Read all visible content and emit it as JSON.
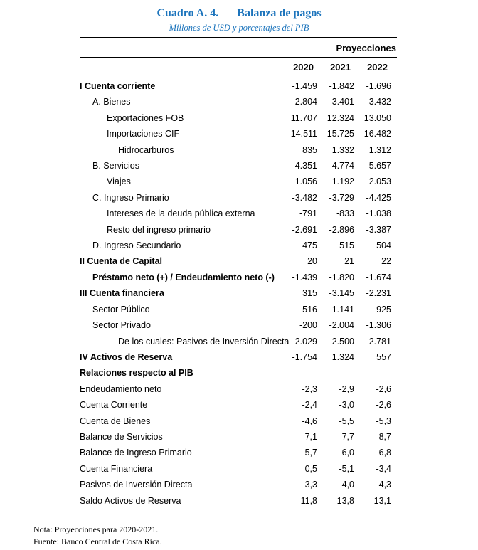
{
  "header": {
    "title_label": "Cuadro A. 4.",
    "title": "Balanza de pagos",
    "subtitle": "Millones de USD y porcentajes del PIB",
    "accent_color": "#1c74bc"
  },
  "table": {
    "projections_label": "Proyecciones",
    "years": [
      "2020",
      "2021",
      "2022"
    ],
    "rows": [
      {
        "label": "I Cuenta corriente",
        "values": [
          "-1.459",
          "-1.842",
          "-1.696"
        ]
      },
      {
        "label": "A. Bienes",
        "values": [
          "-2.804",
          "-3.401",
          "-3.432"
        ]
      },
      {
        "label": "Exportaciones FOB",
        "values": [
          "11.707",
          "12.324",
          "13.050"
        ]
      },
      {
        "label": "Importaciones CIF",
        "values": [
          "14.511",
          "15.725",
          "16.482"
        ]
      },
      {
        "label": "Hidrocarburos",
        "values": [
          "835",
          "1.332",
          "1.312"
        ]
      },
      {
        "label": "B. Servicios",
        "values": [
          "4.351",
          "4.774",
          "5.657"
        ]
      },
      {
        "label": "Viajes",
        "values": [
          "1.056",
          "1.192",
          "2.053"
        ]
      },
      {
        "label": "C. Ingreso Primario",
        "values": [
          "-3.482",
          "-3.729",
          "-4.425"
        ]
      },
      {
        "label": "Intereses de la deuda pública externa",
        "values": [
          "-791",
          "-833",
          "-1.038"
        ]
      },
      {
        "label": "Resto del ingreso primario",
        "values": [
          "-2.691",
          "-2.896",
          "-3.387"
        ]
      },
      {
        "label": "D. Ingreso Secundario",
        "values": [
          "475",
          "515",
          "504"
        ]
      },
      {
        "label": "II Cuenta de Capital",
        "values": [
          "20",
          "21",
          "22"
        ]
      },
      {
        "label": "Préstamo neto (+) / Endeudamiento neto (-)",
        "values": [
          "-1.439",
          "-1.820",
          "-1.674"
        ]
      },
      {
        "label": "III Cuenta financiera",
        "values": [
          "315",
          "-3.145",
          "-2.231"
        ]
      },
      {
        "label": "Sector Público",
        "values": [
          "516",
          "-1.141",
          "-925"
        ]
      },
      {
        "label": "Sector Privado",
        "values": [
          "-200",
          "-2.004",
          "-1.306"
        ]
      },
      {
        "label": "De los cuales: Pasivos de Inversión Directa",
        "values": [
          "-2.029",
          "-2.500",
          "-2.781"
        ]
      },
      {
        "label": "IV Activos de Reserva",
        "values": [
          "-1.754",
          "1.324",
          "557"
        ]
      },
      {
        "label": "Relaciones respecto al PIB",
        "values": [
          "",
          "",
          ""
        ]
      },
      {
        "label": "Endeudamiento neto",
        "values": [
          "-2,3",
          "-2,9",
          "-2,6"
        ]
      },
      {
        "label": "Cuenta Corriente",
        "values": [
          "-2,4",
          "-3,0",
          "-2,6"
        ]
      },
      {
        "label": "Cuenta de Bienes",
        "values": [
          "-4,6",
          "-5,5",
          "-5,3"
        ]
      },
      {
        "label": "Balance de Servicios",
        "values": [
          "7,1",
          "7,7",
          "8,7"
        ]
      },
      {
        "label": "Balance de Ingreso Primario",
        "values": [
          "-5,7",
          "-6,0",
          "-6,8"
        ]
      },
      {
        "label": "Cuenta Financiera",
        "values": [
          "0,5",
          "-5,1",
          "-3,4"
        ]
      },
      {
        "label": "Pasivos de Inversión Directa",
        "values": [
          "-3,3",
          "-4,0",
          "-4,3"
        ]
      },
      {
        "label": "Saldo Activos de Reserva",
        "values": [
          "11,8",
          "13,8",
          "13,1"
        ]
      }
    ]
  },
  "notes": {
    "note": "Nota: Proyecciones para 2020-2021.",
    "source": "Fuente: Banco Central de Costa Rica."
  }
}
